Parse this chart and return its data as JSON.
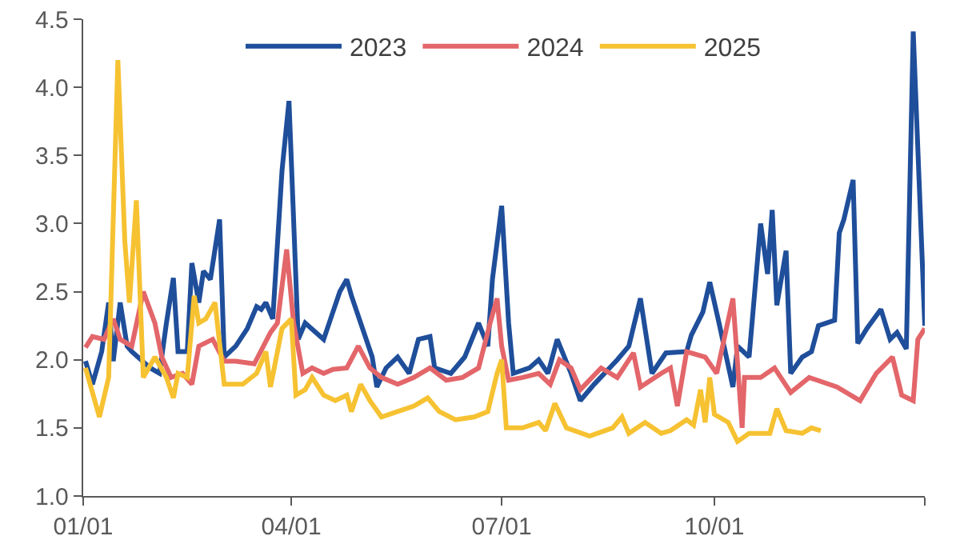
{
  "chart_data": {
    "type": "line",
    "xlim": [
      "--01-01",
      "--12-31"
    ],
    "xticks": [
      {
        "value": "--01-01",
        "label": "01/01"
      },
      {
        "value": "--04-01",
        "label": "04/01"
      },
      {
        "value": "--07-01",
        "label": "07/01"
      },
      {
        "value": "--10-01",
        "label": "10/01"
      },
      {
        "value": "--12-31",
        "label": null
      }
    ],
    "ylim": [
      1,
      4.5
    ],
    "yticks": [
      {
        "value": 1,
        "label": "1.0"
      },
      {
        "value": 1.5,
        "label": "1.5"
      },
      {
        "value": 2,
        "label": "2.0"
      },
      {
        "value": 2.5,
        "label": "2.5"
      },
      {
        "value": 3,
        "label": "3.0"
      },
      {
        "value": 3.5,
        "label": "3.5"
      },
      {
        "value": 4,
        "label": "4.0"
      },
      {
        "value": 4.5,
        "label": "4.5"
      }
    ],
    "grid": false,
    "legend": "top",
    "marker": "none",
    "line_style": "solid",
    "series": [
      {
        "name": "2023",
        "color": "#1f4e9a",
        "x": [
          "--01-02",
          "--01-05",
          "--01-09",
          "--01-12",
          "--01-14",
          "--01-17",
          "--01-20",
          "--01-22",
          "--01-30",
          "--02-03",
          "--02-06",
          "--02-09",
          "--02-11",
          "--02-15",
          "--02-17",
          "--02-20",
          "--02-22",
          "--02-25",
          "--03-01",
          "--03-03",
          "--03-08",
          "--03-13",
          "--03-17",
          "--03-19",
          "--03-21",
          "--03-24",
          "--03-28",
          "--03-31",
          "--04-01",
          "--04-04",
          "--04-07",
          "--04-15",
          "--04-18",
          "--04-22",
          "--04-25",
          "--04-27",
          "--05-06",
          "--05-08",
          "--05-12",
          "--05-17",
          "--05-22",
          "--05-26",
          "--05-31",
          "--06-02",
          "--06-09",
          "--06-15",
          "--06-21",
          "--06-25",
          "--06-27",
          "--07-01",
          "--07-04",
          "--07-06",
          "--07-13",
          "--07-17",
          "--07-21",
          "--07-25",
          "--07-31",
          "--08-04",
          "--08-10",
          "--08-20",
          "--08-25",
          "--08-30",
          "--09-04",
          "--09-10",
          "--09-19",
          "--09-21",
          "--09-26",
          "--09-29",
          "--10-03",
          "--10-09",
          "--10-11",
          "--10-16",
          "--10-21",
          "--10-24",
          "--10-26",
          "--10-28",
          "--11-01",
          "--11-03",
          "--11-08",
          "--11-12",
          "--11-15",
          "--11-22",
          "--11-24",
          "--11-26",
          "--11-30",
          "--12-02",
          "--12-06",
          "--12-12",
          "--12-16",
          "--12-19",
          "--12-23",
          "--12-26",
          "--12-31"
        ],
        "values": [
          1.99,
          1.82,
          2.06,
          2.42,
          1.99,
          2.42,
          2.1,
          2.06,
          1.94,
          1.9,
          2.27,
          2.6,
          2.06,
          2.06,
          2.71,
          2.42,
          2.65,
          2.59,
          3.03,
          2.02,
          2.1,
          2.23,
          2.39,
          2.37,
          2.42,
          2.3,
          3.39,
          3.9,
          3.47,
          2.15,
          2.27,
          2.15,
          2.3,
          2.5,
          2.59,
          2.47,
          2.02,
          1.8,
          1.94,
          2.02,
          1.9,
          2.15,
          2.17,
          1.94,
          1.9,
          2.02,
          2.27,
          2.1,
          2.59,
          3.13,
          2.27,
          1.9,
          1.94,
          2.0,
          1.9,
          2.15,
          1.9,
          1.7,
          1.82,
          2.0,
          2.1,
          2.45,
          1.9,
          2.05,
          2.06,
          2.18,
          2.35,
          2.57,
          2.27,
          1.8,
          2.1,
          2.02,
          3.0,
          2.63,
          3.1,
          2.4,
          2.8,
          1.9,
          2.02,
          2.06,
          2.25,
          2.29,
          2.93,
          3.03,
          3.32,
          2.12,
          2.23,
          2.37,
          2.15,
          2.2,
          2.08,
          4.41,
          2.25
        ]
      },
      {
        "name": "2024",
        "color": "#e3666a",
        "x": [
          "--01-02",
          "--01-05",
          "--01-10",
          "--01-14",
          "--01-17",
          "--01-22",
          "--01-27",
          "--02-01",
          "--02-04",
          "--02-08",
          "--02-13",
          "--02-17",
          "--02-20",
          "--02-26",
          "--03-03",
          "--03-08",
          "--03-16",
          "--03-23",
          "--03-26",
          "--03-30",
          "--04-02",
          "--04-06",
          "--04-10",
          "--04-15",
          "--04-19",
          "--04-25",
          "--04-30",
          "--05-05",
          "--05-10",
          "--05-17",
          "--05-24",
          "--05-31",
          "--06-07",
          "--06-14",
          "--06-21",
          "--06-26",
          "--06-29",
          "--07-01",
          "--07-04",
          "--07-10",
          "--07-17",
          "--07-22",
          "--07-26",
          "--07-31",
          "--08-04",
          "--08-13",
          "--08-20",
          "--08-27",
          "--08-30",
          "--09-08",
          "--09-12",
          "--09-15",
          "--09-19",
          "--09-27",
          "--10-02",
          "--10-09",
          "--10-13",
          "--10-14",
          "--10-21",
          "--10-27",
          "--11-03",
          "--11-11",
          "--11-23",
          "--12-03",
          "--12-10",
          "--12-17",
          "--12-21",
          "--12-26",
          "--12-28",
          "--12-31"
        ],
        "values": [
          2.09,
          2.17,
          2.15,
          2.3,
          2.15,
          2.1,
          2.5,
          2.27,
          2.02,
          1.87,
          1.9,
          1.82,
          2.1,
          2.15,
          1.99,
          1.99,
          1.97,
          2.2,
          2.27,
          2.81,
          2.27,
          1.9,
          1.94,
          1.9,
          1.93,
          1.94,
          2.1,
          1.94,
          1.87,
          1.82,
          1.87,
          1.94,
          1.85,
          1.87,
          1.94,
          2.27,
          2.45,
          2.1,
          1.85,
          1.87,
          1.9,
          1.82,
          2.0,
          1.94,
          1.78,
          1.94,
          1.87,
          2.05,
          1.8,
          1.9,
          1.94,
          1.66,
          2.06,
          2.02,
          1.9,
          2.45,
          1.5,
          1.87,
          1.87,
          1.94,
          1.76,
          1.87,
          1.8,
          1.7,
          1.9,
          2.02,
          1.74,
          1.7,
          2.15,
          2.23
        ]
      },
      {
        "name": "2025",
        "color": "#f6c232",
        "x": [
          "--01-02",
          "--01-08",
          "--01-12",
          "--01-16",
          "--01-19",
          "--01-21",
          "--01-24",
          "--01-27",
          "--02-01",
          "--02-06",
          "--02-09",
          "--02-11",
          "--02-15",
          "--02-18",
          "--02-20",
          "--02-23",
          "--02-27",
          "--03-03",
          "--03-11",
          "--03-17",
          "--03-21",
          "--03-23",
          "--03-28",
          "--04-01",
          "--04-03",
          "--04-07",
          "--04-10",
          "--04-15",
          "--04-20",
          "--04-25",
          "--04-27",
          "--05-01",
          "--05-05",
          "--05-10",
          "--05-17",
          "--05-24",
          "--05-30",
          "--06-04",
          "--06-11",
          "--06-19",
          "--06-25",
          "--06-29",
          "--07-01",
          "--07-03",
          "--07-10",
          "--07-17",
          "--07-20",
          "--07-24",
          "--07-29",
          "--08-08",
          "--08-18",
          "--08-22",
          "--08-25",
          "--09-01",
          "--09-08",
          "--09-12",
          "--09-19",
          "--09-22",
          "--09-25",
          "--09-27",
          "--09-29",
          "--10-01",
          "--10-07",
          "--10-11",
          "--10-16",
          "--10-25",
          "--10-28",
          "--11-01",
          "--11-08",
          "--11-12",
          "--11-16"
        ],
        "values": [
          1.94,
          1.58,
          1.87,
          4.2,
          2.87,
          2.42,
          3.17,
          1.87,
          2.02,
          1.87,
          1.72,
          1.9,
          1.87,
          2.47,
          2.27,
          2.3,
          2.42,
          1.82,
          1.82,
          1.9,
          2.06,
          1.8,
          2.23,
          2.3,
          1.74,
          1.78,
          1.87,
          1.74,
          1.7,
          1.74,
          1.62,
          1.82,
          1.7,
          1.58,
          1.62,
          1.66,
          1.72,
          1.62,
          1.56,
          1.58,
          1.62,
          1.9,
          2.0,
          1.5,
          1.5,
          1.54,
          1.48,
          1.68,
          1.5,
          1.44,
          1.5,
          1.58,
          1.46,
          1.54,
          1.46,
          1.48,
          1.56,
          1.52,
          1.78,
          1.54,
          1.87,
          1.6,
          1.54,
          1.4,
          1.46,
          1.46,
          1.64,
          1.48,
          1.46,
          1.5,
          1.48
        ]
      }
    ]
  }
}
